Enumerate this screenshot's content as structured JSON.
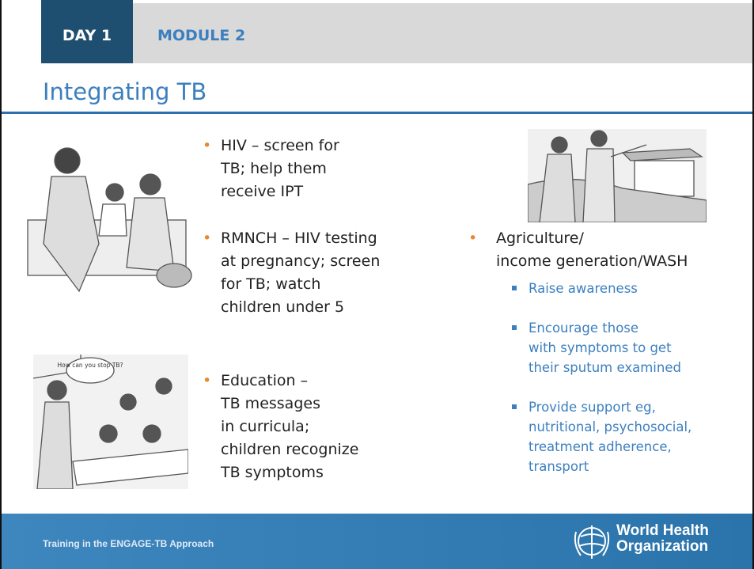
{
  "header": {
    "day": "DAY 1",
    "module": "MODULE 2",
    "title": "Integrating TB"
  },
  "left_bullets": [
    {
      "lines": [
        "HIV – screen for",
        "TB; help them",
        "receive IPT"
      ]
    },
    {
      "lines": [
        "RMNCH – HIV testing",
        "at pregnancy; screen",
        "for TB; watch",
        "children under 5"
      ]
    },
    {
      "lines": [
        "Education –",
        "TB messages",
        "in curricula;",
        "children recognize",
        "TB symptoms"
      ]
    }
  ],
  "right_bullet": {
    "lines": [
      "Agriculture/",
      "income generation/WASH"
    ],
    "sub_bullets": [
      {
        "lines": [
          "Raise awareness"
        ]
      },
      {
        "lines": [
          "Encourage those",
          "with symptoms to get",
          "their sputum examined"
        ]
      },
      {
        "lines": [
          "Provide support eg,",
          "nutritional, psychosocial,",
          "treatment adherence,",
          "transport"
        ]
      }
    ]
  },
  "illustration_speech": "How can you stop TB?",
  "footer": {
    "text": "Training in the ENGAGE-TB Approach",
    "org_lines": [
      "World Health",
      "Organization"
    ]
  }
}
